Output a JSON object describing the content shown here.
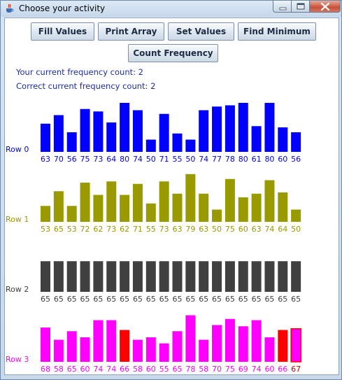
{
  "window": {
    "title": "Choose your activity",
    "icons": [
      "java-cup-icon",
      "minimize-icon",
      "maximize-icon",
      "close-icon"
    ]
  },
  "buttons": {
    "fill_values": "Fill Values",
    "print_array": "Print Array",
    "set_values": "Set Values",
    "find_minimum": "Find Minimum",
    "count_frequency": "Count Frequency"
  },
  "status": {
    "current_count": "Your current frequency count: 2",
    "correct_count": "Correct current frequency count: 2"
  },
  "chart_data": {
    "type": "bar",
    "rows": [
      {
        "name": "Row 0",
        "color": "#0000ff",
        "values": [
          63,
          70,
          56,
          75,
          73,
          64,
          80,
          74,
          50,
          71,
          55,
          50,
          74,
          77,
          78,
          80,
          61,
          80,
          60,
          56
        ]
      },
      {
        "name": "Row 1",
        "color": "#999900",
        "values": [
          53,
          65,
          53,
          72,
          62,
          73,
          62,
          71,
          55,
          73,
          63,
          79,
          63,
          50,
          75,
          60,
          63,
          74,
          64,
          50
        ]
      },
      {
        "name": "Row 2",
        "color": "#404040",
        "values": [
          65,
          65,
          65,
          65,
          65,
          65,
          65,
          65,
          65,
          65,
          65,
          65,
          65,
          65,
          65,
          65,
          65,
          65,
          65,
          65
        ]
      },
      {
        "name": "Row 3",
        "color": "#ff00ff",
        "values": [
          68,
          58,
          65,
          60,
          74,
          74,
          66,
          58,
          60,
          55,
          65,
          78,
          58,
          70,
          75,
          69,
          74,
          60,
          66,
          67
        ],
        "highlight_color": "#ff0000",
        "highlighted_indices": [
          6,
          18
        ],
        "current_index": 19,
        "current_label_color": "#cc0000"
      }
    ]
  }
}
